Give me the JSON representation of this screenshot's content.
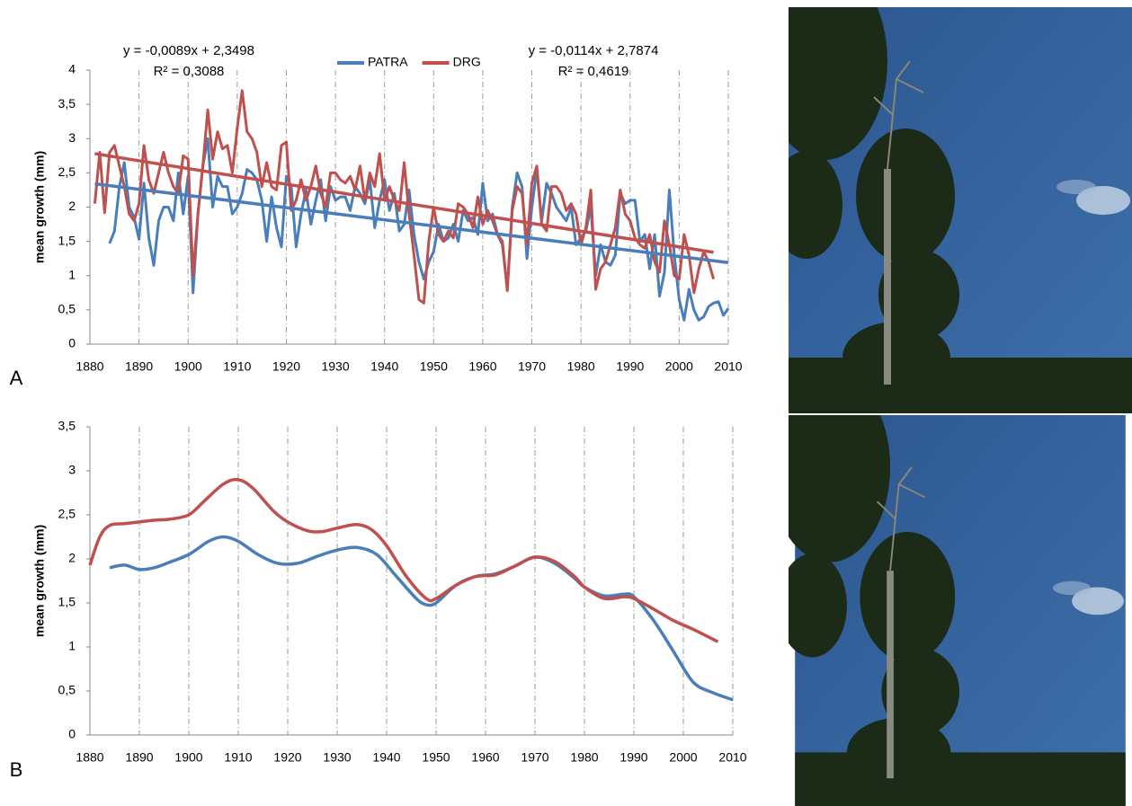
{
  "chart_data": [
    {
      "type": "line",
      "label": "A",
      "ylabel": "mean growth (mm)",
      "x": [
        1881,
        1882,
        1883,
        1884,
        1885,
        1886,
        1887,
        1888,
        1889,
        1890,
        1891,
        1892,
        1893,
        1894,
        1895,
        1896,
        1897,
        1898,
        1899,
        1900,
        1901,
        1902,
        1903,
        1904,
        1905,
        1906,
        1907,
        1908,
        1909,
        1910,
        1911,
        1912,
        1913,
        1914,
        1915,
        1916,
        1917,
        1918,
        1919,
        1920,
        1921,
        1922,
        1923,
        1924,
        1925,
        1926,
        1927,
        1928,
        1929,
        1930,
        1931,
        1932,
        1933,
        1934,
        1935,
        1936,
        1937,
        1938,
        1939,
        1940,
        1941,
        1942,
        1943,
        1944,
        1945,
        1946,
        1947,
        1948,
        1949,
        1950,
        1951,
        1952,
        1953,
        1954,
        1955,
        1956,
        1957,
        1958,
        1959,
        1960,
        1961,
        1962,
        1963,
        1964,
        1965,
        1966,
        1967,
        1968,
        1969,
        1970,
        1971,
        1972,
        1973,
        1974,
        1975,
        1976,
        1977,
        1978,
        1979,
        1980,
        1981,
        1982,
        1983,
        1984,
        1985,
        1986,
        1987,
        1988,
        1989,
        1990,
        1991,
        1992,
        1993,
        1994,
        1995,
        1996,
        1997,
        1998,
        1999,
        2000,
        2001,
        2002,
        2003,
        2004,
        2005,
        2006,
        2007,
        2008,
        2009,
        2010
      ],
      "series": [
        {
          "name": "PATRA",
          "color": "#4a7ebb",
          "values": [
            null,
            null,
            null,
            1.47,
            1.65,
            2.3,
            2.65,
            2.0,
            1.85,
            1.53,
            2.35,
            1.55,
            1.15,
            1.8,
            2.0,
            2.0,
            1.8,
            2.5,
            1.9,
            2.45,
            0.75,
            1.9,
            2.6,
            3.0,
            2.0,
            2.45,
            2.3,
            2.3,
            1.9,
            2.0,
            2.2,
            2.55,
            2.5,
            2.4,
            2.1,
            1.5,
            2.15,
            1.7,
            1.42,
            2.45,
            2.3,
            1.42,
            1.9,
            2.25,
            1.75,
            2.1,
            2.4,
            1.8,
            2.3,
            2.1,
            2.15,
            2.15,
            1.95,
            2.3,
            2.2,
            2.05,
            2.4,
            1.7,
            2.1,
            2.4,
            1.95,
            2.2,
            1.65,
            1.75,
            2.25,
            1.6,
            1.2,
            0.95,
            1.2,
            1.35,
            1.75,
            1.5,
            1.55,
            1.75,
            1.5,
            1.95,
            1.8,
            1.85,
            1.6,
            2.35,
            1.8,
            1.9,
            1.6,
            1.45,
            0.8,
            2.0,
            2.5,
            2.3,
            1.25,
            2.0,
            2.55,
            1.8,
            2.35,
            2.2,
            2.0,
            1.9,
            1.8,
            2.0,
            1.45,
            1.55,
            1.65,
            2.0,
            1.0,
            1.45,
            1.2,
            1.15,
            1.3,
            2.2,
            2.05,
            2.1,
            2.1,
            1.5,
            1.6,
            1.1,
            1.6,
            0.7,
            1.05,
            2.25,
            1.3,
            0.65,
            0.35,
            0.8,
            0.5,
            0.35,
            0.4,
            0.55,
            0.6,
            0.62,
            0.42,
            0.52
          ]
        },
        {
          "name": "DRG",
          "color": "#c0504d",
          "values": [
            2.05,
            2.8,
            1.92,
            2.8,
            2.9,
            2.6,
            2.3,
            1.9,
            1.8,
            2.05,
            2.9,
            2.4,
            2.2,
            2.5,
            2.8,
            2.5,
            2.3,
            2.2,
            2.75,
            2.7,
            1.0,
            1.9,
            2.6,
            3.42,
            2.7,
            3.1,
            2.85,
            2.9,
            2.5,
            3.15,
            3.7,
            3.1,
            3.0,
            2.8,
            2.3,
            2.65,
            2.3,
            2.25,
            2.9,
            2.95,
            1.95,
            2.1,
            2.4,
            2.1,
            2.3,
            2.6,
            2.2,
            2.0,
            2.5,
            2.5,
            2.4,
            2.35,
            2.45,
            2.25,
            2.6,
            2.1,
            2.5,
            2.3,
            2.78,
            2.1,
            2.3,
            2.1,
            1.95,
            2.65,
            1.9,
            1.3,
            0.65,
            0.6,
            1.5,
            2.0,
            1.6,
            1.5,
            1.65,
            1.55,
            2.05,
            2.0,
            1.9,
            1.7,
            2.15,
            1.75,
            1.95,
            1.8,
            1.6,
            1.5,
            0.78,
            1.95,
            2.3,
            2.2,
            1.45,
            2.35,
            2.6,
            1.75,
            1.65,
            2.3,
            2.3,
            2.2,
            1.95,
            2.05,
            1.9,
            1.45,
            1.7,
            2.25,
            0.8,
            1.1,
            1.2,
            1.45,
            1.7,
            2.25,
            1.9,
            1.8,
            1.55,
            1.45,
            1.4,
            1.6,
            1.2,
            1.05,
            1.8,
            1.45,
            1.0,
            0.95,
            1.6,
            1.3,
            0.75,
            1.1,
            1.35,
            1.2,
            0.95,
            null,
            null,
            null
          ]
        }
      ],
      "trendlines": [
        {
          "color": "#4a7ebb",
          "x": [
            1881,
            2010
          ],
          "values": [
            2.34,
            1.19
          ]
        },
        {
          "color": "#c0504d",
          "x": [
            1881,
            2007
          ],
          "values": [
            2.78,
            1.34
          ]
        }
      ],
      "annotations": [
        "y = -0,0089x + 2,3498",
        "R² = 0,3088",
        "y = -0,0114x + 2,7874",
        "R² = 0,4619"
      ],
      "legend": "top",
      "grid": "x",
      "xlim": [
        1880,
        2010
      ],
      "xticks": [
        1880,
        1890,
        1900,
        1910,
        1920,
        1930,
        1940,
        1950,
        1960,
        1970,
        1980,
        1990,
        2000,
        2010
      ],
      "ylim": [
        0,
        4
      ],
      "yticks": [
        0,
        {
          "value": 0.5,
          "label": "0,5"
        },
        1,
        {
          "value": 1.5,
          "label": "1,5"
        },
        2,
        {
          "value": 2.5,
          "label": "2,5"
        },
        3,
        {
          "value": 3.5,
          "label": "3,5"
        },
        4
      ]
    },
    {
      "type": "line",
      "label": "B",
      "ylabel": "mean growth (mm)",
      "smooth": true,
      "series": [
        {
          "color": "#4a7ebb",
          "x": [
            1884,
            1887,
            1890,
            1893,
            1896,
            1900,
            1904,
            1907,
            1910,
            1914,
            1918,
            1922,
            1926,
            1930,
            1934,
            1938,
            1942,
            1946,
            1948,
            1950,
            1954,
            1958,
            1962,
            1966,
            1970,
            1974,
            1978,
            1980,
            1984,
            1988,
            1990,
            1994,
            1998,
            2002,
            2006,
            2010
          ],
          "values": [
            1.9,
            1.93,
            1.88,
            1.9,
            1.96,
            2.05,
            2.2,
            2.25,
            2.2,
            2.05,
            1.95,
            1.95,
            2.03,
            2.1,
            2.13,
            2.05,
            1.8,
            1.55,
            1.48,
            1.5,
            1.7,
            1.8,
            1.83,
            1.92,
            2.02,
            1.95,
            1.78,
            1.68,
            1.58,
            1.6,
            1.57,
            1.3,
            0.95,
            0.6,
            0.48,
            0.4
          ]
        },
        {
          "color": "#c0504d",
          "x": [
            1880,
            1882,
            1884,
            1887,
            1890,
            1893,
            1896,
            1900,
            1903,
            1907,
            1910,
            1913,
            1917,
            1920,
            1924,
            1927,
            1930,
            1934,
            1937,
            1940,
            1944,
            1948,
            1950,
            1954,
            1958,
            1962,
            1966,
            1970,
            1974,
            1978,
            1980,
            1984,
            1988,
            1990,
            1994,
            1998,
            2002,
            2007
          ],
          "values": [
            1.93,
            2.25,
            2.38,
            2.4,
            2.42,
            2.44,
            2.45,
            2.5,
            2.65,
            2.85,
            2.9,
            2.8,
            2.55,
            2.42,
            2.32,
            2.31,
            2.35,
            2.39,
            2.33,
            2.15,
            1.8,
            1.55,
            1.55,
            1.7,
            1.8,
            1.82,
            1.92,
            2.02,
            1.97,
            1.8,
            1.68,
            1.55,
            1.57,
            1.55,
            1.43,
            1.3,
            1.2,
            1.06
          ]
        }
      ],
      "grid": "x",
      "xlim": [
        1880,
        2010
      ],
      "xticks": [
        1880,
        1890,
        1900,
        1910,
        1920,
        1930,
        1940,
        1950,
        1960,
        1970,
        1980,
        1990,
        2000,
        2010
      ],
      "ylim": [
        0,
        3.5
      ],
      "yticks": [
        0,
        {
          "value": 0.5,
          "label": "0,5"
        },
        1,
        {
          "value": 1.5,
          "label": "1,5"
        },
        2,
        {
          "value": 2.5,
          "label": "2,5"
        },
        3,
        {
          "value": 3.5,
          "label": "3,5"
        }
      ]
    }
  ]
}
